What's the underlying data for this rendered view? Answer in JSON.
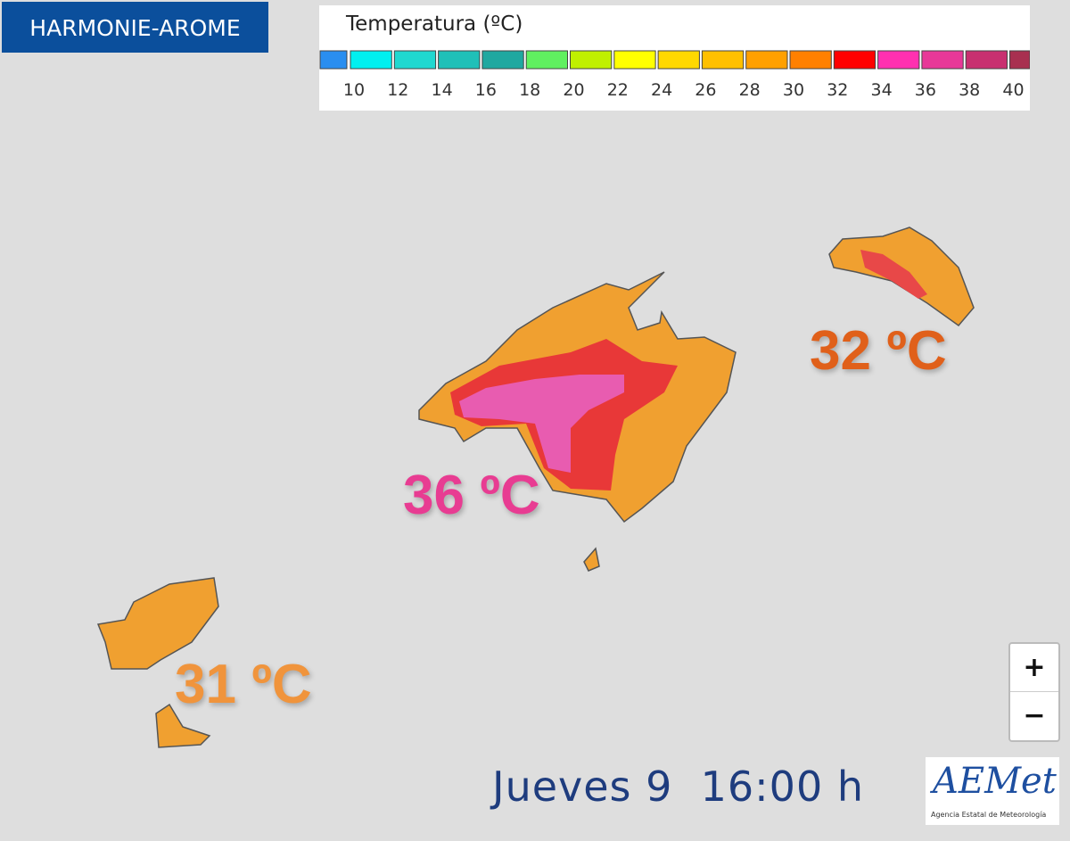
{
  "model": "HARMONIE-AROME",
  "legend": {
    "title": "Temperatura (ºC)",
    "labels": [
      10,
      12,
      14,
      16,
      18,
      20,
      22,
      24,
      26,
      28,
      30,
      32,
      34,
      36,
      38,
      40
    ],
    "colors": [
      "#2a8ef0",
      "#00f0f0",
      "#20d8d0",
      "#20c0b8",
      "#20a8a0",
      "#60f060",
      "#c0f000",
      "#ffff00",
      "#ffd800",
      "#ffc000",
      "#ffa000",
      "#ff8000",
      "#ff0000",
      "#ff30b0",
      "#e83898",
      "#c83070",
      "#a83050"
    ]
  },
  "labels": [
    {
      "text": "32 ºC",
      "color": "#e0601a"
    },
    {
      "text": "36 ºC",
      "color": "#e83c92"
    },
    {
      "text": "31 ºC",
      "color": "#f0943c"
    }
  ],
  "zoom": {
    "in": "+",
    "out": "−"
  },
  "date": "Jueves 9  16:00 h",
  "logo": {
    "name": "AEMet",
    "subtitle": "Agencia Estatal de Meteorología"
  }
}
